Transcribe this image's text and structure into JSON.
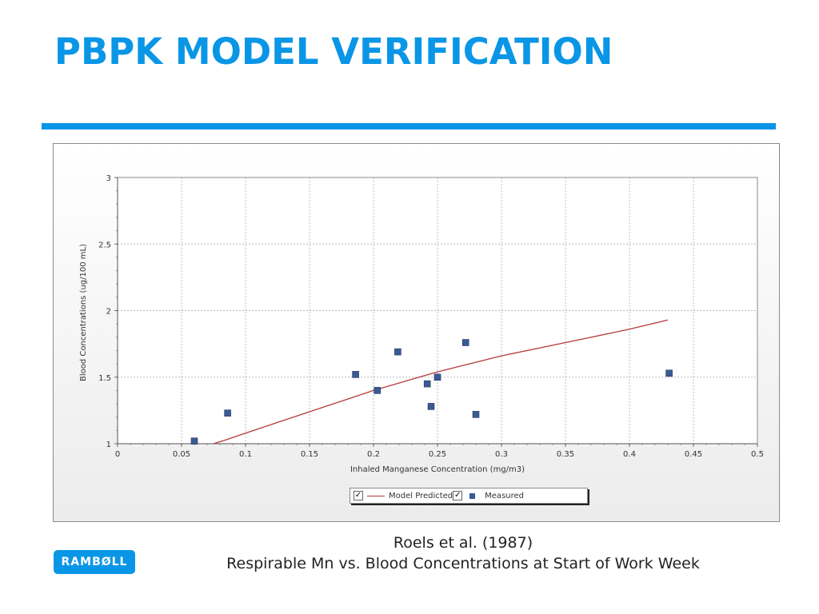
{
  "slide": {
    "title": "PBPK MODEL VERIFICATION",
    "caption_line1": "Roels et al. (1987)",
    "caption_line2": "Respirable Mn vs. Blood Concentrations at Start of Work Week",
    "logo_text": "RAMBØLL",
    "accent_color": "#0a96e6"
  },
  "chart_data": {
    "type": "scatter",
    "title": "",
    "xlabel": "Inhaled Manganese Concentration (mg/m3)",
    "ylabel": "Blood Concentrations (ug/100 mL)",
    "xlim": [
      0,
      0.5
    ],
    "ylim": [
      1,
      3
    ],
    "x_ticks": [
      "0",
      "0.05",
      "0.1",
      "0.15",
      "0.2",
      "0.25",
      "0.3",
      "0.35",
      "0.4",
      "0.45",
      "0.5"
    ],
    "y_ticks": [
      "1",
      "1.5",
      "2",
      "2.5",
      "3"
    ],
    "grid": true,
    "legend_position": "bottom-center",
    "series": [
      {
        "name": "Model Predicted",
        "kind": "line",
        "color": "#b33a3a",
        "checked": true,
        "points": [
          [
            0.075,
            0.99
          ],
          [
            0.085,
            1.03
          ],
          [
            0.1,
            1.08
          ],
          [
            0.125,
            1.16
          ],
          [
            0.15,
            1.24
          ],
          [
            0.175,
            1.32
          ],
          [
            0.2,
            1.4
          ],
          [
            0.225,
            1.47
          ],
          [
            0.25,
            1.54
          ],
          [
            0.275,
            1.6
          ],
          [
            0.3,
            1.66
          ],
          [
            0.35,
            1.76
          ],
          [
            0.4,
            1.86
          ],
          [
            0.43,
            1.93
          ]
        ]
      },
      {
        "name": "Measured",
        "kind": "scatter",
        "color": "#3a5a93",
        "checked": true,
        "points": [
          [
            0.06,
            1.02
          ],
          [
            0.086,
            1.23
          ],
          [
            0.186,
            1.52
          ],
          [
            0.203,
            1.4
          ],
          [
            0.219,
            1.69
          ],
          [
            0.242,
            1.45
          ],
          [
            0.245,
            1.28
          ],
          [
            0.25,
            1.5
          ],
          [
            0.272,
            1.76
          ],
          [
            0.28,
            1.22
          ],
          [
            0.431,
            1.53
          ]
        ]
      }
    ]
  }
}
